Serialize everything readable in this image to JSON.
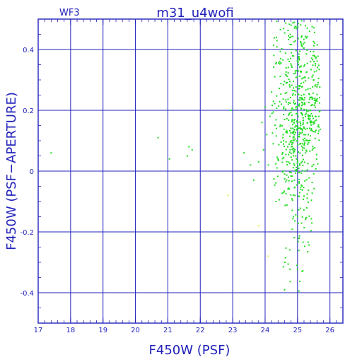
{
  "chart_data": {
    "type": "scatter",
    "title": "m31_u4wofi",
    "subtitle": "WF3",
    "xlabel": "F450W (PSF)",
    "ylabel": "F450W (PSF−APERTURE)",
    "xlim": [
      17,
      26.4
    ],
    "ylim": [
      -0.5,
      0.5
    ],
    "x_ticks": [
      17,
      18,
      19,
      20,
      21,
      22,
      23,
      24,
      25,
      26
    ],
    "y_ticks": [
      -0.4,
      -0.2,
      0,
      0.2,
      0.4
    ],
    "x_tick_labels": [
      "17",
      "18",
      "19",
      "20",
      "21",
      "22",
      "23",
      "24",
      "25",
      "26"
    ],
    "y_tick_labels": [
      "-0.4",
      "-0.2",
      "0",
      "0.2",
      "0.4"
    ],
    "grid": true,
    "colors": {
      "axes": "#2222bb",
      "main_points": "#22dd22",
      "outlier_points": "#e6e640"
    },
    "series": [
      {
        "color": "#22dd22",
        "points": [
          [
            17.4,
            0.06
          ],
          [
            20.7,
            0.11
          ],
          [
            21.05,
            0.04
          ],
          [
            21.6,
            0.05
          ],
          [
            21.65,
            0.08
          ],
          [
            21.75,
            0.07
          ],
          [
            22.95,
            0.2
          ],
          [
            23.35,
            0.06
          ],
          [
            23.55,
            0.02
          ],
          [
            23.65,
            -0.03
          ],
          [
            23.8,
            0.03
          ],
          [
            23.9,
            0.16
          ],
          [
            23.95,
            0.07
          ],
          [
            24.0,
            0.21
          ],
          [
            24.05,
            0.12
          ],
          [
            24.1,
            0.02
          ],
          [
            24.15,
            0.18
          ],
          [
            24.2,
            0.26
          ],
          [
            24.25,
            0.09
          ],
          [
            24.3,
            0.31
          ],
          [
            24.35,
            0.14
          ],
          [
            24.4,
            0.04
          ],
          [
            24.45,
            0.36
          ],
          [
            24.5,
            0.22
          ],
          [
            24.55,
            0.11
          ],
          [
            24.6,
            0.17
          ],
          [
            24.65,
            0.29
          ],
          [
            24.7,
            0.08
          ],
          [
            24.72,
            -0.02
          ],
          [
            24.75,
            0.19
          ],
          [
            24.8,
            0.14
          ],
          [
            24.82,
            0.4
          ],
          [
            24.85,
            0.25
          ],
          [
            24.88,
            0.05
          ],
          [
            24.9,
            0.12
          ],
          [
            24.92,
            -0.08
          ],
          [
            24.95,
            0.21
          ],
          [
            24.97,
            0.33
          ],
          [
            25.0,
            0.1
          ],
          [
            25.0,
            -0.15
          ],
          [
            25.02,
            0.18
          ],
          [
            25.05,
            0.28
          ],
          [
            25.07,
            0.02
          ],
          [
            25.1,
            0.15
          ],
          [
            25.12,
            0.44
          ],
          [
            25.15,
            0.09
          ],
          [
            25.17,
            0.22
          ],
          [
            25.2,
            0.12
          ],
          [
            25.22,
            0.35
          ],
          [
            25.25,
            0.06
          ],
          [
            25.27,
            0.19
          ],
          [
            25.3,
            0.14
          ],
          [
            25.32,
            0.27
          ],
          [
            25.35,
            0.1
          ],
          [
            25.37,
            0.46
          ],
          [
            25.4,
            0.2
          ],
          [
            25.42,
            0.16
          ],
          [
            25.45,
            0.31
          ],
          [
            25.47,
            0.24
          ],
          [
            25.5,
            0.13
          ],
          [
            25.52,
            0.38
          ],
          [
            25.55,
            0.18
          ],
          [
            24.98,
            -0.31
          ],
          [
            25.05,
            -0.22
          ],
          [
            25.1,
            -0.06
          ],
          [
            24.6,
            -0.01
          ],
          [
            24.35,
            0.44
          ],
          [
            25.6,
            0.23
          ],
          [
            25.15,
            0.41
          ],
          [
            24.8,
            0.48
          ],
          [
            25.3,
            0.47
          ]
        ]
      },
      {
        "color": "#e6e640",
        "points": [
          [
            23.85,
            0.4
          ],
          [
            22.85,
            -0.08
          ],
          [
            24.1,
            -0.28
          ],
          [
            23.8,
            -0.18
          ]
        ]
      }
    ]
  }
}
